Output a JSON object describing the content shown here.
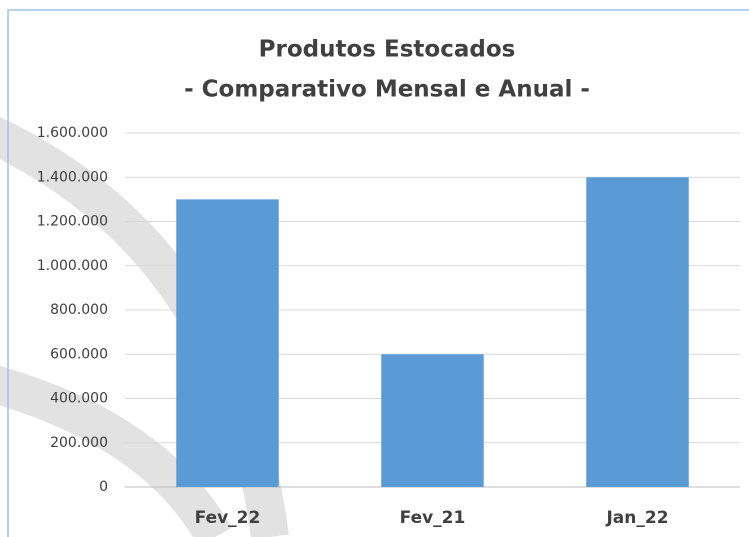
{
  "chart_data": {
    "type": "bar",
    "title": "Produtos Estocados",
    "subtitle": "- Comparativo Mensal e Anual -",
    "categories": [
      "Fev_22",
      "Fev_21",
      "Jan_22"
    ],
    "values": [
      1300000,
      600000,
      1400000
    ],
    "color": "#5b9bd5",
    "ylim": [
      0,
      1600000
    ],
    "yticks": [
      0,
      {
        "value": 200000,
        "label": "200.000"
      },
      {
        "value": 400000,
        "label": "400.000"
      },
      {
        "value": 600000,
        "label": "600.000"
      },
      {
        "value": 800000,
        "label": "800.000"
      },
      {
        "value": 1000000,
        "label": "1.000.000"
      },
      {
        "value": 1200000,
        "label": "1.200.000"
      },
      {
        "value": 1400000,
        "label": "1.400.000"
      },
      {
        "value": 1600000,
        "label": "1.600.000"
      }
    ],
    "grid": true
  }
}
